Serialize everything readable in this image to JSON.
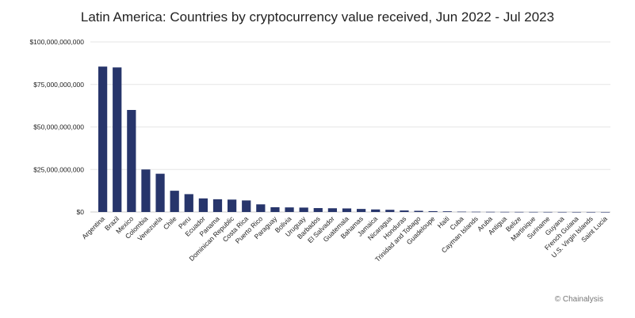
{
  "chart_data": {
    "type": "bar",
    "title": "Latin America: Countries by cryptocurrency value received, Jun 2022 - Jul 2023",
    "xlabel": "",
    "ylabel": "",
    "ylim": [
      0,
      100000000000
    ],
    "yticks": [
      "$0",
      "$25,000,000,000",
      "$50,000,000,000",
      "$75,000,000,000",
      "$100,000,000,000"
    ],
    "ytick_values": [
      0,
      25000000000,
      50000000000,
      75000000000,
      100000000000
    ],
    "grid": true,
    "bar_color": "#27356b",
    "categories": [
      "Argentina",
      "Brazil",
      "Mexico",
      "Colombia",
      "Venezuela",
      "Chile",
      "Peru",
      "Ecuador",
      "Panama",
      "Dominican Republic",
      "Costa Rica",
      "Puerto Rico",
      "Paraguay",
      "Bolivia",
      "Uruguay",
      "Barbados",
      "El Salvador",
      "Guatemala",
      "Bahamas",
      "Jamaica",
      "Nicaragua",
      "Honduras",
      "Trinidad and Tobago",
      "Guadeloupe",
      "Haiti",
      "Cuba",
      "Cayman Islands",
      "Aruba",
      "Antigua",
      "Belize",
      "Martinique",
      "Suriname",
      "Guyana",
      "French Guiana",
      "U.S. Virgin Islands",
      "Saint Lucia"
    ],
    "values": [
      85500000000,
      85000000000,
      60000000000,
      25000000000,
      22500000000,
      12500000000,
      10500000000,
      8000000000,
      7500000000,
      7300000000,
      6800000000,
      4500000000,
      2800000000,
      2700000000,
      2600000000,
      2300000000,
      2200000000,
      2100000000,
      1800000000,
      1500000000,
      1300000000,
      900000000,
      700000000,
      500000000,
      400000000,
      200000000,
      150000000,
      100000000,
      80000000,
      60000000,
      50000000,
      40000000,
      30000000,
      20000000,
      15000000,
      10000000
    ]
  },
  "credit": "© Chainalysis"
}
